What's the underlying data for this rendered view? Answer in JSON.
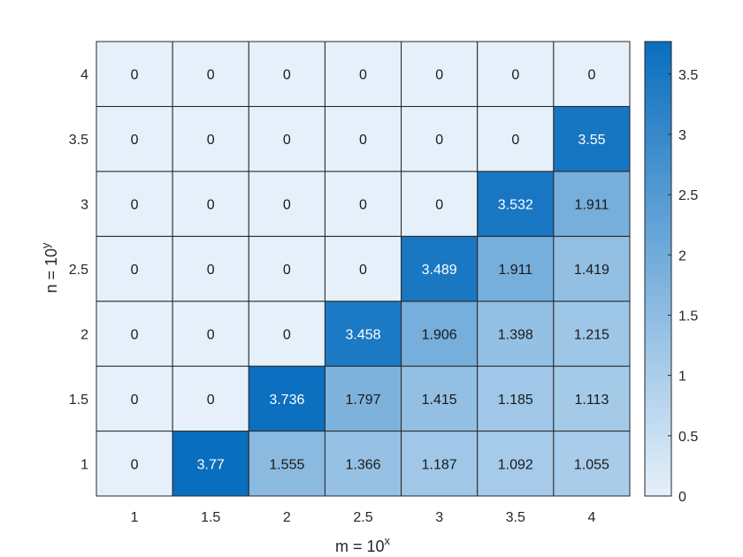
{
  "chart_data": {
    "type": "heatmap",
    "x": [
      "1",
      "1.5",
      "2",
      "2.5",
      "3",
      "3.5",
      "4"
    ],
    "y": [
      "1",
      "1.5",
      "2",
      "2.5",
      "3",
      "3.5",
      "4"
    ],
    "values": [
      [
        0,
        3.77,
        1.555,
        1.366,
        1.187,
        1.092,
        1.055
      ],
      [
        0,
        0,
        3.736,
        1.797,
        1.415,
        1.185,
        1.113
      ],
      [
        0,
        0,
        0,
        3.458,
        1.906,
        1.398,
        1.215
      ],
      [
        0,
        0,
        0,
        0,
        3.489,
        1.911,
        1.419
      ],
      [
        0,
        0,
        0,
        0,
        0,
        3.532,
        1.911
      ],
      [
        0,
        0,
        0,
        0,
        0,
        0,
        3.55
      ],
      [
        0,
        0,
        0,
        0,
        0,
        0,
        0
      ]
    ],
    "value_labels": [
      [
        "0",
        "3.77",
        "1.555",
        "1.366",
        "1.187",
        "1.092",
        "1.055"
      ],
      [
        "0",
        "0",
        "3.736",
        "1.797",
        "1.415",
        "1.185",
        "1.113"
      ],
      [
        "0",
        "0",
        "0",
        "3.458",
        "1.906",
        "1.398",
        "1.215"
      ],
      [
        "0",
        "0",
        "0",
        "0",
        "3.489",
        "1.911",
        "1.419"
      ],
      [
        "0",
        "0",
        "0",
        "0",
        "0",
        "3.532",
        "1.911"
      ],
      [
        "0",
        "0",
        "0",
        "0",
        "0",
        "0",
        "3.55"
      ],
      [
        "0",
        "0",
        "0",
        "0",
        "0",
        "0",
        "0"
      ]
    ],
    "xlabel": {
      "base": "m = 10",
      "superscript": "x"
    },
    "ylabel": {
      "base": "n = 10",
      "superscript": "y"
    },
    "title": "",
    "colorbar": {
      "range": [
        0,
        3.77
      ],
      "ticks": [
        "0",
        "0.5",
        "1",
        "1.5",
        "2",
        "2.5",
        "3",
        "3.5"
      ],
      "tick_values": [
        0,
        0.5,
        1,
        1.5,
        2,
        2.5,
        3,
        3.5
      ],
      "color_low": "#e5f0fa",
      "color_high": "#0a6ebe"
    },
    "text_color_dark": "#1a1a1a",
    "text_color_light": "#ffffff",
    "grid_color": "#262626"
  }
}
